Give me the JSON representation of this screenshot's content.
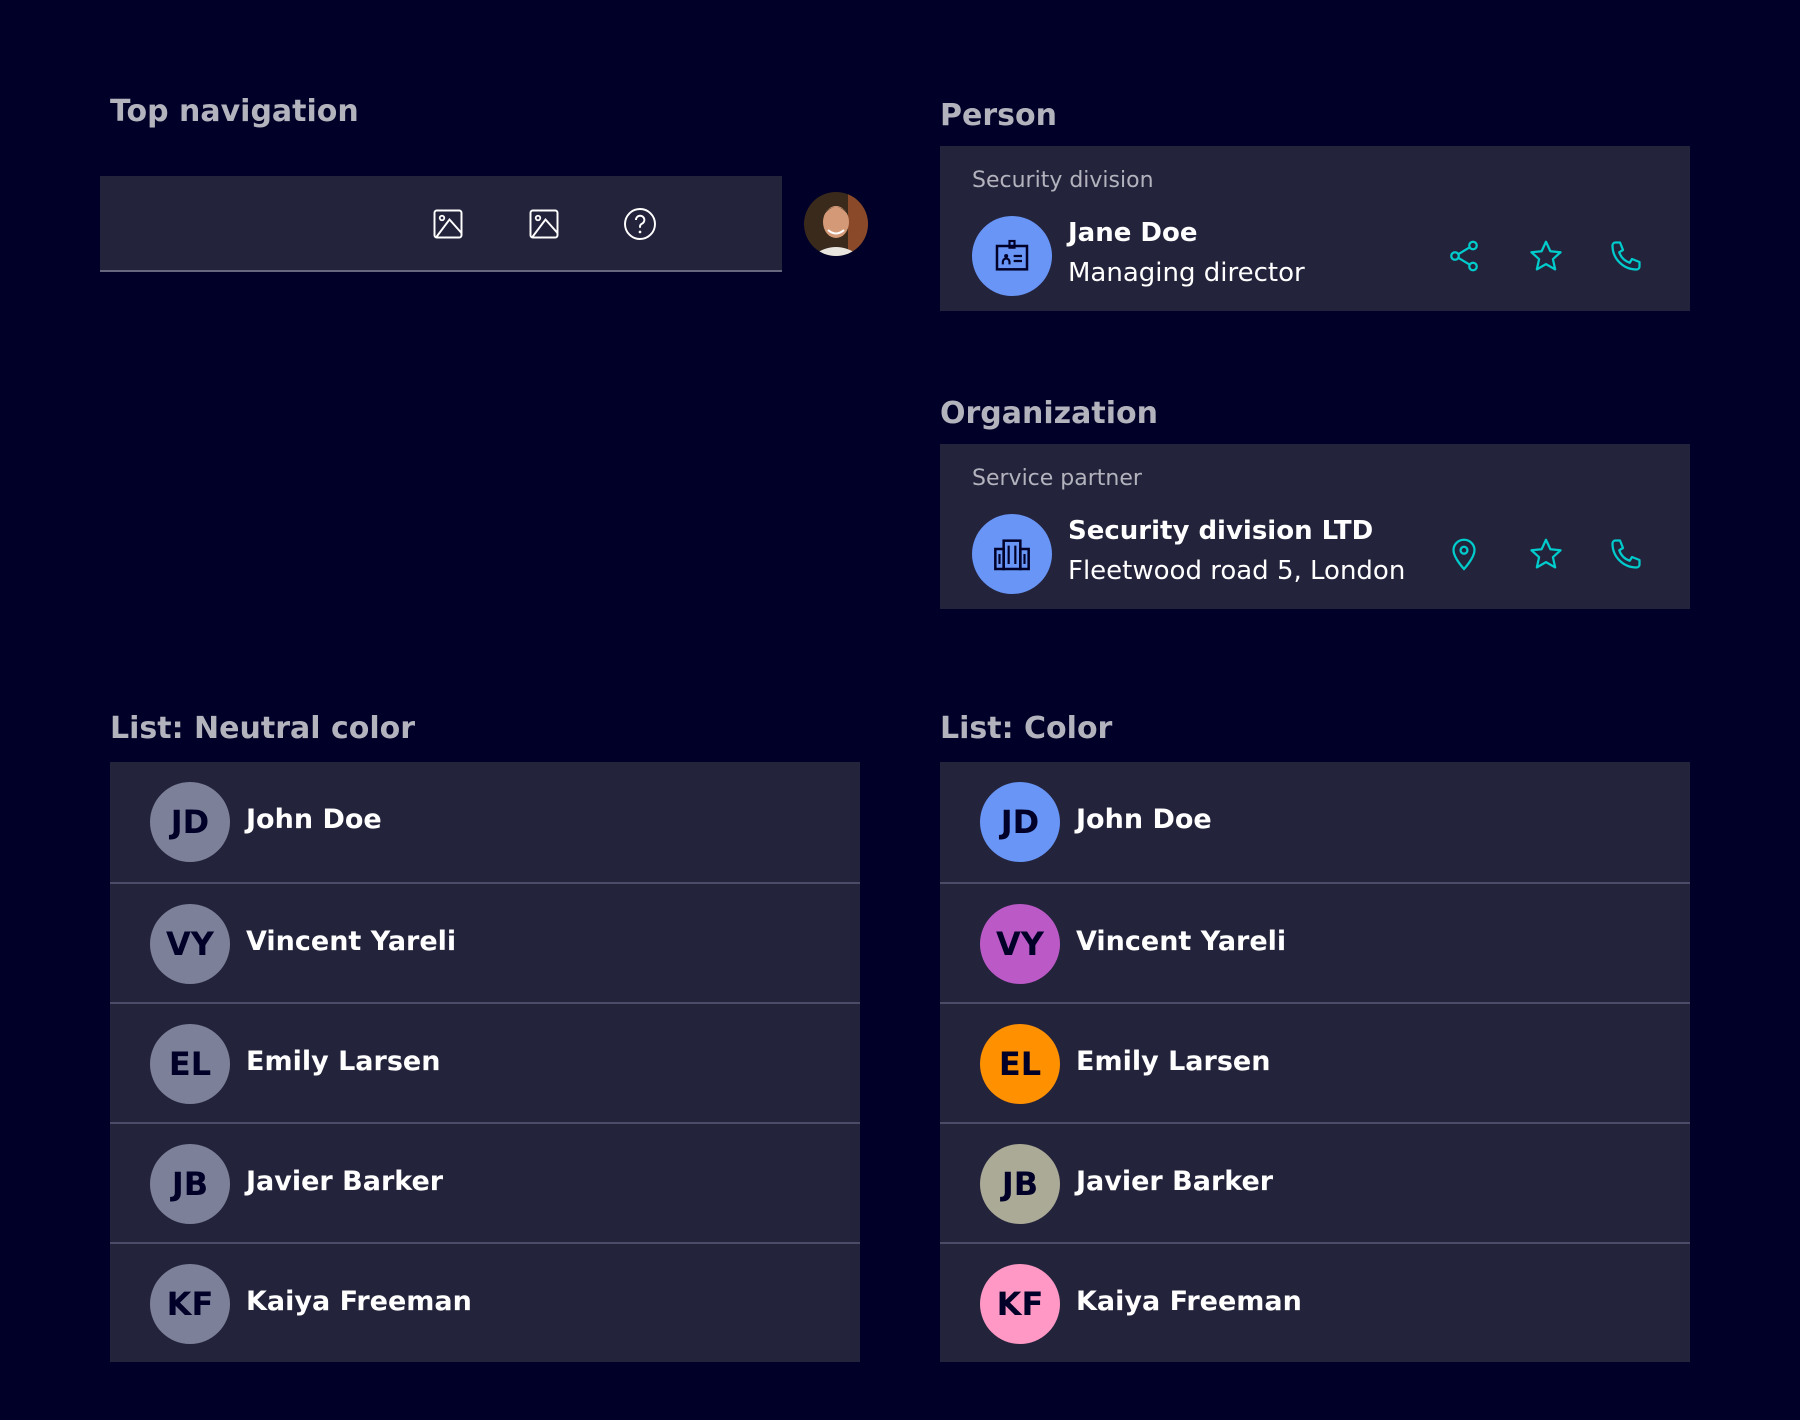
{
  "sections": {
    "top_nav": "Top navigation",
    "person": "Person",
    "organization": "Organization",
    "list_neutral": "List: Neutral color",
    "list_color": "List:  Color"
  },
  "nav": {
    "icons": [
      "image-icon",
      "image-icon",
      "help-icon",
      "user-avatar"
    ]
  },
  "person": {
    "subtitle": "Security division",
    "name": "Jane Doe",
    "role": "Managing director",
    "icon": "id-badge-icon",
    "actions": [
      "share-icon",
      "star-icon",
      "phone-icon"
    ]
  },
  "organization": {
    "subtitle": "Service partner",
    "name": "Security division LTD",
    "address": "Fleetwood road 5, London",
    "icon": "building-icon",
    "actions": [
      "location-pin-icon",
      "star-icon",
      "phone-icon"
    ]
  },
  "colors": {
    "background": "#000028",
    "card": "#23233c",
    "accent": "#00cccc",
    "neutral_avatar": "#7d8099"
  },
  "list_neutral": [
    {
      "initials": "JD",
      "name": "John Doe"
    },
    {
      "initials": "VY",
      "name": "Vincent Yareli"
    },
    {
      "initials": "EL",
      "name": "Emily Larsen"
    },
    {
      "initials": "JB",
      "name": "Javier Barker"
    },
    {
      "initials": "KF",
      "name": "Kaiya Freeman"
    }
  ],
  "list_color": [
    {
      "initials": "JD",
      "name": "John Doe",
      "color": "#6895f6"
    },
    {
      "initials": "VY",
      "name": "Vincent Yareli",
      "color": "#bb5ac6"
    },
    {
      "initials": "EL",
      "name": "Emily Larsen",
      "color": "#ff9000"
    },
    {
      "initials": "JB",
      "name": "Javier Barker",
      "color": "#aaaa96"
    },
    {
      "initials": "KF",
      "name": "Kaiya Freeman",
      "color": "#ff98c4"
    }
  ]
}
